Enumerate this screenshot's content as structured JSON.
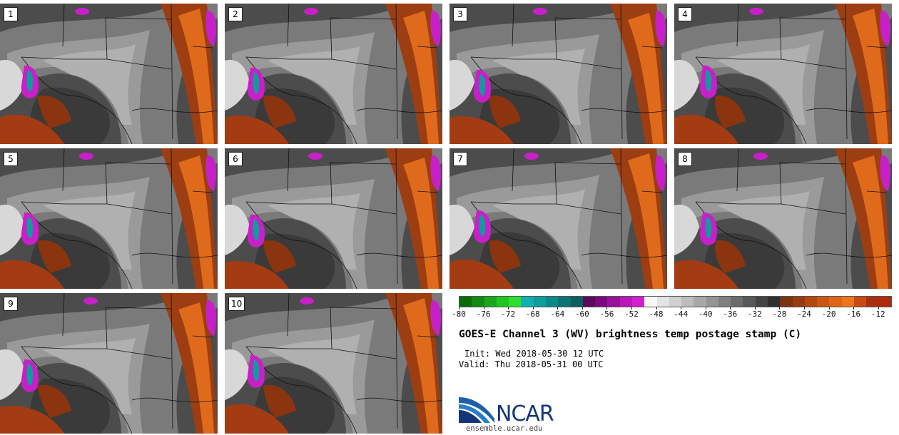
{
  "figure": {
    "title": "GOES-E Channel 3 (WV) brightness temp postage stamp (C)",
    "init": "Init: Wed 2018-05-30 12 UTC",
    "valid": "Valid: Thu 2018-05-31 00 UTC"
  },
  "panels": [
    {
      "label": "1"
    },
    {
      "label": "2"
    },
    {
      "label": "3"
    },
    {
      "label": "4"
    },
    {
      "label": "5"
    },
    {
      "label": "6"
    },
    {
      "label": "7"
    },
    {
      "label": "8"
    },
    {
      "label": "9"
    },
    {
      "label": "10"
    }
  ],
  "colorbar": {
    "ticks": [
      "-80",
      "-76",
      "-72",
      "-68",
      "-64",
      "-60",
      "-56",
      "-52",
      "-48",
      "-44",
      "-40",
      "-36",
      "-32",
      "-28",
      "-24",
      "-20",
      "-16",
      "-12"
    ],
    "min": -80,
    "max": -10,
    "colors": [
      "#0b6b0b",
      "#108a10",
      "#1aa81a",
      "#22c422",
      "#2ee02e",
      "#10b0b0",
      "#0e9c9c",
      "#0c8888",
      "#0a7474",
      "#086060",
      "#5a0a5a",
      "#7a0a7a",
      "#9a109a",
      "#b818b8",
      "#d020d0",
      "#f8f8f8",
      "#e4e4e4",
      "#d0d0d0",
      "#bcbcbc",
      "#a8a8a8",
      "#949494",
      "#808080",
      "#6c6c6c",
      "#585858",
      "#444444",
      "#303030",
      "#7a3510",
      "#963c10",
      "#b04812",
      "#c85614",
      "#e06418",
      "#f07420",
      "#c84a14",
      "#a83010",
      "#b02a0c"
    ]
  },
  "logo": {
    "name": "NCAR",
    "url": "ensemble.ucar.edu"
  }
}
